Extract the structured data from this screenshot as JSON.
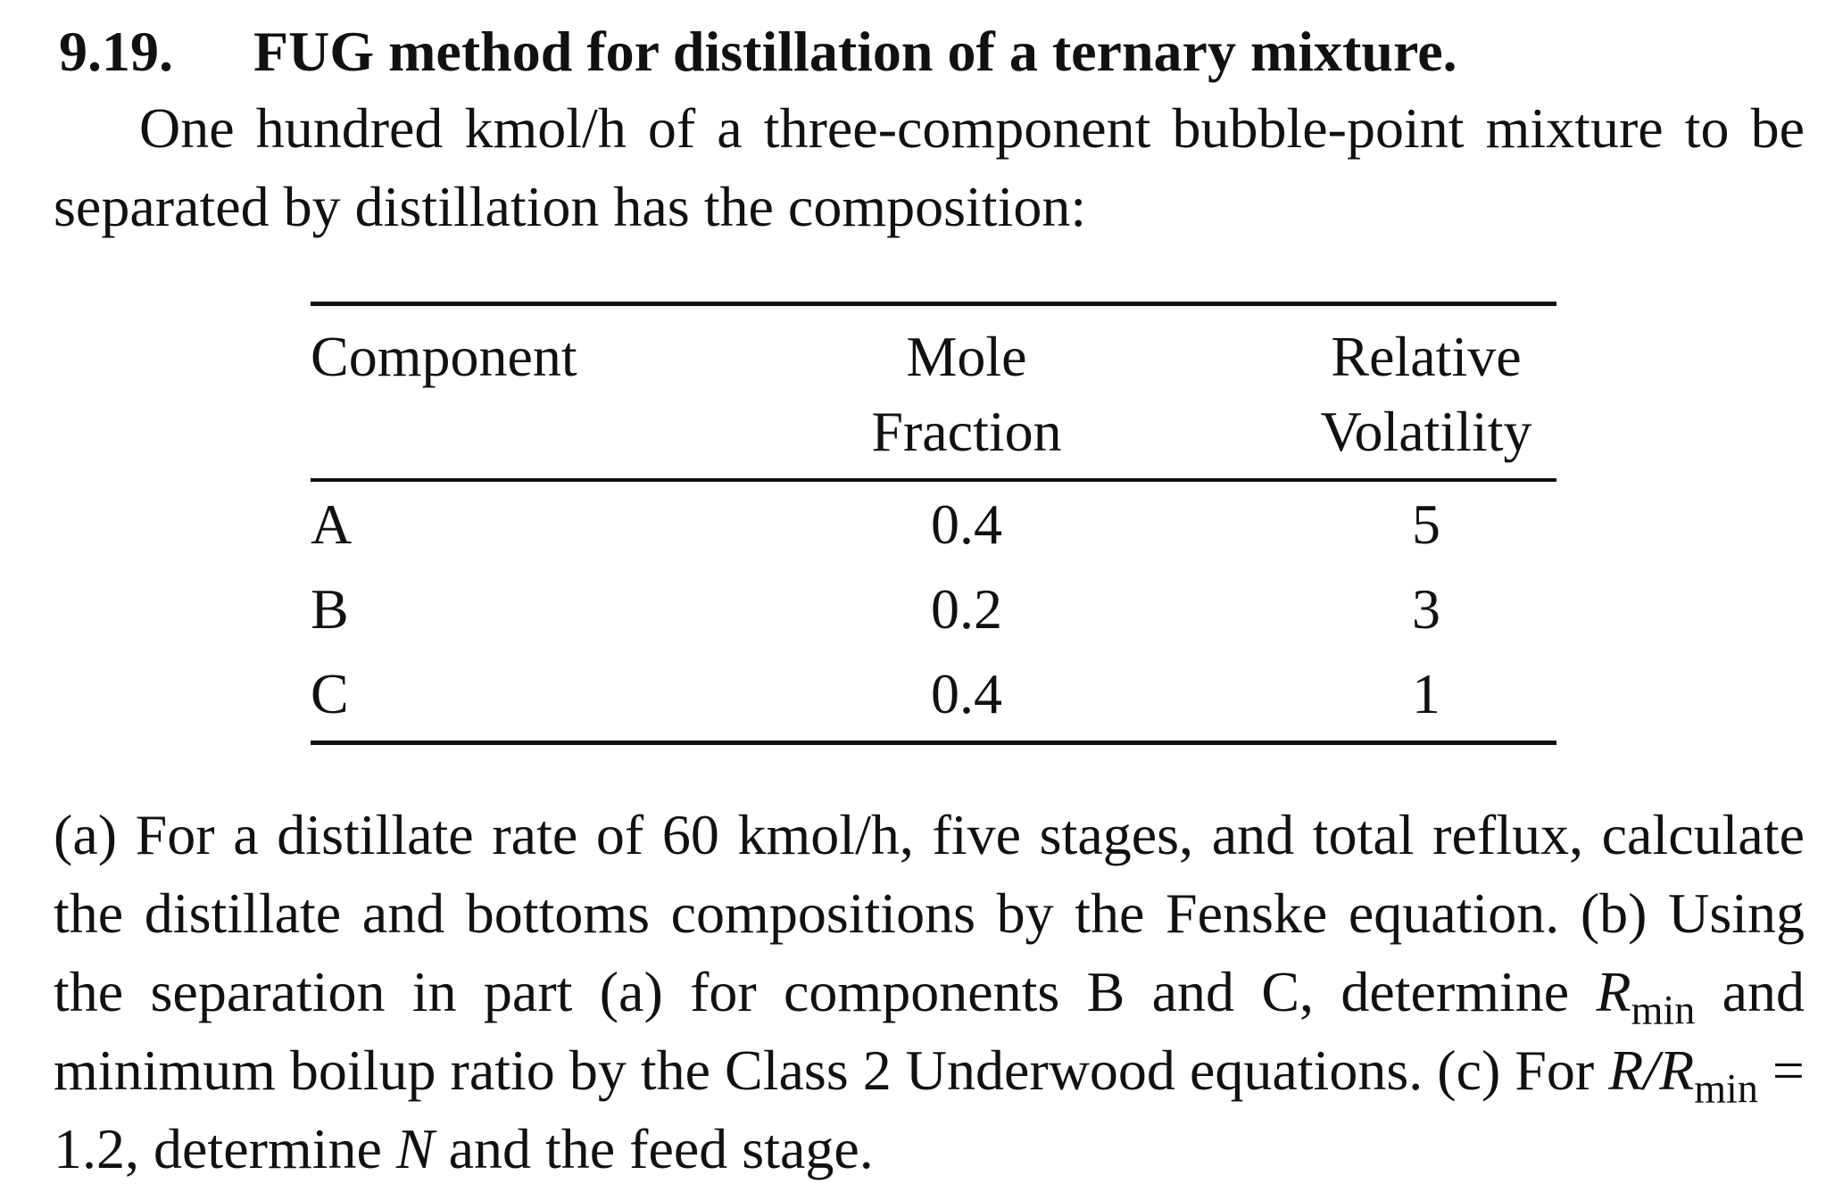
{
  "problem": {
    "number": "9.19.",
    "title": "FUG method for distillation of a ternary mixture."
  },
  "intro": "One hundred kmol/h of a three-component bubble-point mixture to be separated by distillation has the composition:",
  "table": {
    "headers": {
      "component": "Component",
      "mole_fraction_line1": "Mole",
      "mole_fraction_line2": "Fraction",
      "volatility_line1": "Relative",
      "volatility_line2": "Volatility"
    },
    "rows": [
      {
        "component": "A",
        "mole_fraction": "0.4",
        "relative_volatility": "5"
      },
      {
        "component": "B",
        "mole_fraction": "0.2",
        "relative_volatility": "3"
      },
      {
        "component": "C",
        "mole_fraction": "0.4",
        "relative_volatility": "1"
      }
    ]
  },
  "questions": {
    "part1": "(a) For a distillate rate of 60 kmol/h, five stages, and total reflux, calculate the distillate and bottoms compositions by the Fenske equation. (b) Using the separation in part (a) for components B and C, determine ",
    "rmin_symbol": "R",
    "rmin_sub": "min",
    "part2": " and minimum boilup ratio by the Class 2 Underwood equations. (c) For ",
    "ratio_num": "R",
    "ratio_slash": "/",
    "ratio_den": "R",
    "ratio_den_sub": "min",
    "ratio_value": " = 1.2, determine ",
    "n_symbol": "N",
    "part3": " and the feed stage."
  }
}
